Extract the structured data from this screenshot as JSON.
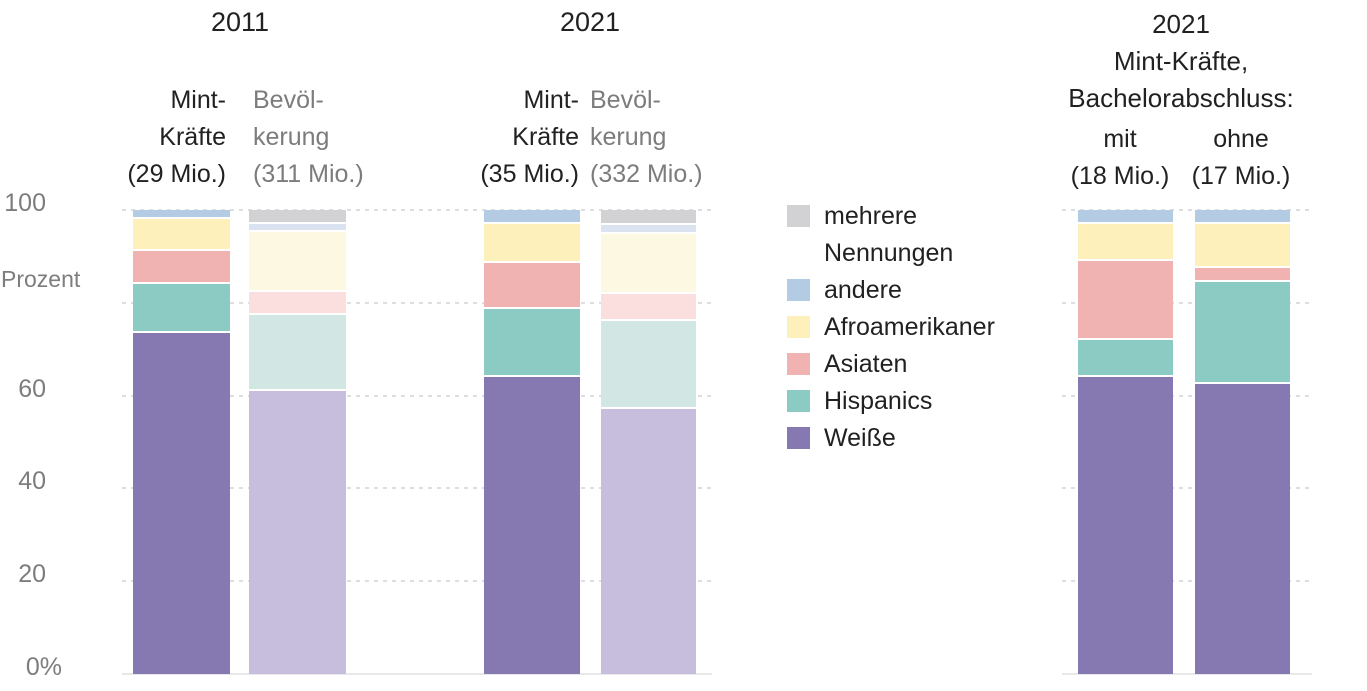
{
  "y_axis": {
    "title": "Prozent",
    "range": [
      0,
      100
    ],
    "ticks": [
      {
        "label": "100",
        "value": 100
      },
      {
        "label": "60",
        "value": 60
      },
      {
        "label": "40",
        "value": 40
      },
      {
        "label": "20",
        "value": 20
      },
      {
        "label": "0%",
        "value": 0
      }
    ],
    "gridline_values": [
      0,
      20,
      40,
      60,
      80,
      100
    ]
  },
  "palette": {
    "solid": {
      "weisse": "#8678b1",
      "hispanics": "#8ccbc4",
      "asiaten": "#f1b3b2",
      "afroamerikaner": "#fdf0bb",
      "andere": "#b4cbe4",
      "mehrere": "#d2d2d4"
    },
    "muted": {
      "weisse": "#c7bedd",
      "hispanics": "#d2e7e4",
      "asiaten": "#fadfde",
      "afroamerikaner": "#fdf8e2",
      "andere": "#dbe3f0",
      "mehrere": "#d2d2d4"
    }
  },
  "legend": {
    "items": [
      {
        "key": "mehrere",
        "label": "mehrere Nennungen",
        "color": "#d2d2d4"
      },
      {
        "key": "andere",
        "label": "andere",
        "color": "#b4cbe4"
      },
      {
        "key": "afroamerikaner",
        "label": "Afroamerikaner",
        "color": "#fdf0bb"
      },
      {
        "key": "asiaten",
        "label": "Asiaten",
        "color": "#f1b3b2"
      },
      {
        "key": "hispanics",
        "label": "Hispanics",
        "color": "#8ccbc4"
      },
      {
        "key": "weisse",
        "label": "Weiße",
        "color": "#8678b1"
      }
    ]
  },
  "text_colors": {
    "dark": "#212121",
    "muted": "#7c7c7c",
    "axis": "#7d7d7d"
  },
  "chart_data": [
    {
      "type": "bar",
      "subtype": "stacked-percent",
      "ylabel": "Prozent",
      "ylim": [
        0,
        100
      ],
      "grid": "horizontal-dashed",
      "stack_order_bottom_to_top": [
        "weisse",
        "hispanics",
        "asiaten",
        "afroamerikaner",
        "andere",
        "mehrere"
      ],
      "groups": [
        {
          "title": "2011"
        },
        {
          "title": "2021"
        }
      ],
      "bars": [
        {
          "group": "2011",
          "name": "Mint-Kräfte",
          "size": "29 Mio.",
          "label_lines": [
            "Mint-",
            "Kräfte",
            "(29 Mio.)"
          ],
          "fill": "solid",
          "label_style": "dark",
          "values": {
            "weisse": 74,
            "hispanics": 10.5,
            "asiaten": 7,
            "afroamerikaner": 7,
            "andere": 1.5,
            "mehrere": 0
          }
        },
        {
          "group": "2011",
          "name": "Bevölkerung",
          "size": "311 Mio.",
          "label_lines": [
            "Bevöl-",
            "kerung",
            "(311 Mio.)"
          ],
          "fill": "muted",
          "label_style": "muted",
          "values": {
            "weisse": 61.5,
            "hispanics": 16.3,
            "asiaten": 5,
            "afroamerikaner": 12.9,
            "andere": 1.7,
            "mehrere": 2.6
          }
        },
        {
          "group": "2021",
          "name": "Mint-Kräfte",
          "size": "35 Mio.",
          "label_lines": [
            "Mint-",
            "Kräfte",
            "(35 Mio.)"
          ],
          "fill": "solid",
          "label_style": "dark",
          "values": {
            "weisse": 64.5,
            "hispanics": 14.5,
            "asiaten": 10,
            "afroamerikaner": 8.5,
            "andere": 2.5,
            "mehrere": 0
          }
        },
        {
          "group": "2021",
          "name": "Bevölkerung",
          "size": "332 Mio.",
          "label_lines": [
            "Bevöl-",
            "kerung",
            "(332 Mio.)"
          ],
          "fill": "muted",
          "label_style": "muted",
          "values": {
            "weisse": 57.5,
            "hispanics": 19,
            "asiaten": 5.8,
            "afroamerikaner": 13,
            "andere": 1.9,
            "mehrere": 2.8
          }
        }
      ]
    },
    {
      "type": "bar",
      "subtype": "stacked-percent",
      "header_lines": [
        "2021",
        "Mint-Kräfte,",
        "Bachelorabschluss:"
      ],
      "ylim": [
        0,
        100
      ],
      "grid": "horizontal-dashed",
      "stack_order_bottom_to_top": [
        "weisse",
        "hispanics",
        "asiaten",
        "afroamerikaner",
        "andere",
        "mehrere"
      ],
      "bars": [
        {
          "name": "mit Bachelorabschluss",
          "size": "18 Mio.",
          "label_lines": [
            "mit",
            "(18 Mio.)"
          ],
          "fill": "solid",
          "label_style": "dark",
          "values": {
            "weisse": 64.5,
            "hispanics": 8,
            "asiaten": 17,
            "afroamerikaner": 8,
            "andere": 2.5,
            "mehrere": 0
          }
        },
        {
          "name": "ohne Bachelorabschluss",
          "size": "17 Mio.",
          "label_lines": [
            "ohne",
            "(17 Mio.)"
          ],
          "fill": "solid",
          "label_style": "dark",
          "values": {
            "weisse": 63,
            "hispanics": 22,
            "asiaten": 3,
            "afroamerikaner": 9.5,
            "andere": 2.5,
            "mehrere": 0
          }
        }
      ]
    }
  ]
}
